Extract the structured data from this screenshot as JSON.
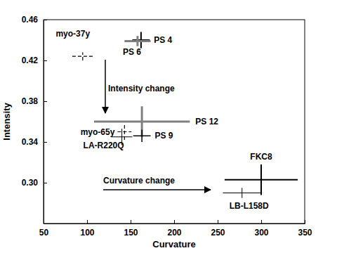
{
  "chart_data": {
    "type": "scatter",
    "x_label": "Curvature",
    "y_label": "Intensity",
    "xlim": [
      50,
      350
    ],
    "ylim": [
      0.26,
      0.46
    ],
    "xticks": [
      50,
      100,
      150,
      200,
      250,
      300,
      350
    ],
    "yticks": [
      {
        "value": 0.3,
        "label": "0.30"
      },
      0.34,
      0.38,
      0.42,
      0.46
    ],
    "grid": false,
    "annotations": [
      {
        "text": "Intensity change"
      },
      {
        "text": "Curvature change"
      }
    ],
    "series": [
      {
        "name": "PS 4",
        "color": "#000000",
        "line_style": "solid",
        "x": [
          162
        ],
        "values": [
          0.44
        ],
        "x_error": [
          10
        ],
        "y_error": [
          0.008
        ]
      },
      {
        "name": "PS 6",
        "color": "#808080",
        "line_style": "solid",
        "x": [
          158
        ],
        "values": [
          0.439
        ],
        "x_error": [
          15
        ],
        "y_error": [
          0.005
        ]
      },
      {
        "name": "myo-37y",
        "color": "#000000",
        "line_style": "dashed",
        "x": [
          95
        ],
        "values": [
          0.424
        ],
        "x_error": [
          12
        ],
        "y_error": [
          0.004
        ]
      },
      {
        "name": "PS 12",
        "color": "#808080",
        "line_style": "solid",
        "x": [
          163
        ],
        "values": [
          0.36
        ],
        "x_error": [
          55
        ],
        "y_error": [
          0.015
        ]
      },
      {
        "name": "PS 9",
        "color": "#000000",
        "line_style": "solid",
        "x": [
          163
        ],
        "values": [
          0.346
        ],
        "x_error": [
          10
        ],
        "y_error": [
          0.006
        ]
      },
      {
        "name": "myo-65y",
        "color": "#000000",
        "line_style": "dashed",
        "x": [
          143
        ],
        "values": [
          0.35
        ],
        "x_error": [
          8
        ],
        "y_error": [
          0.008
        ]
      },
      {
        "name": "LA-R220Q",
        "color": "#000000",
        "line_style": "solid",
        "x": [
          140
        ],
        "values": [
          0.345
        ],
        "x_error": [
          12
        ],
        "y_error": [
          0.008
        ]
      },
      {
        "name": "FKC8",
        "color": "#000000",
        "line_style": "solid",
        "x": [
          300
        ],
        "values": [
          0.303
        ],
        "x_error": [
          42
        ],
        "y_error": [
          0.015
        ]
      },
      {
        "name": "LB-L158D",
        "color": "#000000",
        "line_style": "solid",
        "x": [
          278
        ],
        "values": [
          0.29
        ],
        "x_error": [
          22
        ],
        "y_error": [
          0.005
        ]
      }
    ]
  }
}
